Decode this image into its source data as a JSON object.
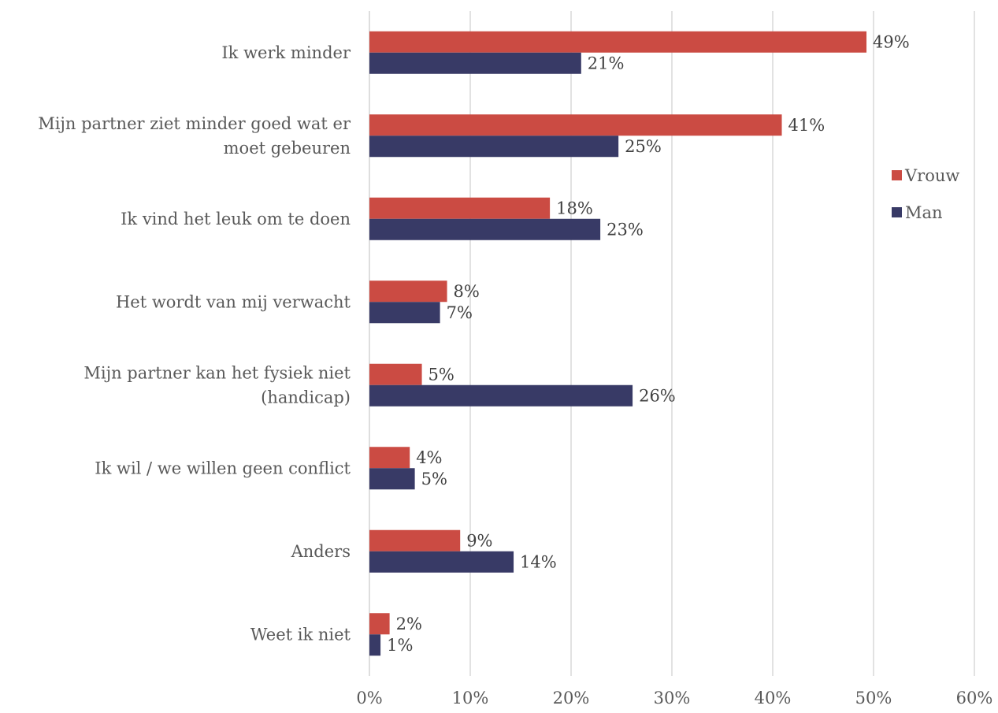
{
  "chart_data": {
    "type": "bar",
    "orientation": "horizontal",
    "title": "",
    "xlabel": "",
    "ylabel": "",
    "categories": [
      [
        "Ik werk minder"
      ],
      [
        "Mijn partner ziet minder goed wat er",
        "moet gebeuren"
      ],
      [
        "Ik vind het leuk om te doen"
      ],
      [
        "Het wordt van mij verwacht"
      ],
      [
        "Mijn partner kan het fysiek niet",
        "(handicap)"
      ],
      [
        "Ik wil / we willen geen conflict"
      ],
      [
        "Anders"
      ],
      [
        "Weet ik niet"
      ]
    ],
    "series": [
      {
        "name": "Vrouw",
        "color": "#cb4b43",
        "values": [
          49.3,
          40.9,
          17.9,
          7.7,
          5.2,
          4.0,
          9.0,
          2.0
        ],
        "labels": [
          "49%",
          "41%",
          "18%",
          "8%",
          "5%",
          "4%",
          "9%",
          "2%"
        ]
      },
      {
        "name": "Man",
        "color": "#383a66",
        "values": [
          21.0,
          24.7,
          22.9,
          7.0,
          26.1,
          4.5,
          14.3,
          1.1
        ],
        "labels": [
          "21%",
          "25%",
          "23%",
          "7%",
          "26%",
          "5%",
          "14%",
          "1%"
        ]
      }
    ],
    "xlim": [
      0,
      60
    ],
    "xticks": [
      0,
      10,
      20,
      30,
      40,
      50,
      60
    ],
    "xtick_labels": [
      "0%",
      "10%",
      "20%",
      "30%",
      "40%",
      "50%",
      "60%"
    ],
    "grid": "vertical",
    "legend_position": "right"
  }
}
